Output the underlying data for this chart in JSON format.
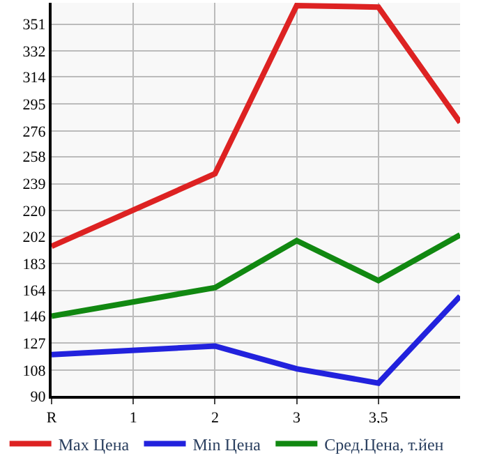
{
  "chart_data": {
    "type": "line",
    "categories": [
      "R",
      "1",
      "2",
      "3",
      "3,5",
      null
    ],
    "series": [
      {
        "name": "Max Цена",
        "color": "#dd2222",
        "values": [
          195,
          null,
          246,
          364,
          363,
          282
        ]
      },
      {
        "name": "Min Цена",
        "color": "#2222dd",
        "values": [
          119,
          null,
          125,
          109,
          99,
          160
        ]
      },
      {
        "name": "Сред.Цена, т.йен",
        "color": "#118811",
        "values": [
          146,
          null,
          166,
          199,
          171,
          203
        ]
      }
    ],
    "ylim": [
      90,
      366
    ],
    "yticks": [
      90,
      108,
      127,
      146,
      164,
      183,
      202,
      220,
      239,
      258,
      276,
      295,
      314,
      332,
      351
    ],
    "grid": true,
    "legend": "bottom",
    "marker": "none",
    "line_style": "solid"
  }
}
